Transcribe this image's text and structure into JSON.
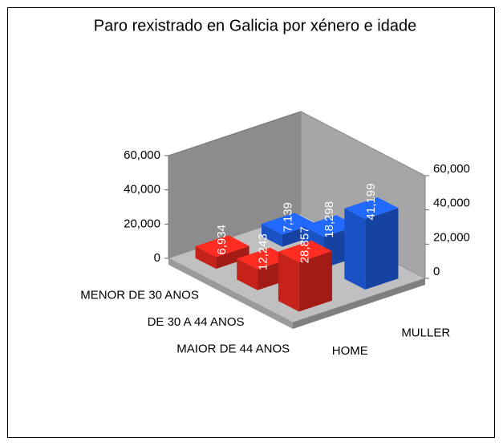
{
  "chart_data": {
    "type": "bar3d",
    "title": "Paro rexistrado en Galicia por xénero e idade",
    "categories": [
      "MENOR DE 30 ANOS",
      "DE 30 A 44 ANOS",
      "MAIOR DE 44 ANOS"
    ],
    "series": [
      {
        "name": "HOME",
        "color": "#e8281e",
        "values": [
          6934,
          12243,
          28857
        ],
        "value_labels": [
          "6,934",
          "12,243",
          "28,857"
        ]
      },
      {
        "name": "MULLER",
        "color": "#1f5fe6",
        "values": [
          7139,
          18298,
          41199
        ],
        "value_labels": [
          "7,139",
          "18,298",
          "41,199"
        ]
      }
    ],
    "ylim": [
      0,
      60000
    ],
    "yticks": [
      0,
      {
        "value": 20000,
        "label": "20,000"
      },
      {
        "value": 40000,
        "label": "40,000"
      },
      {
        "value": 60000,
        "label": "60,000"
      }
    ]
  }
}
